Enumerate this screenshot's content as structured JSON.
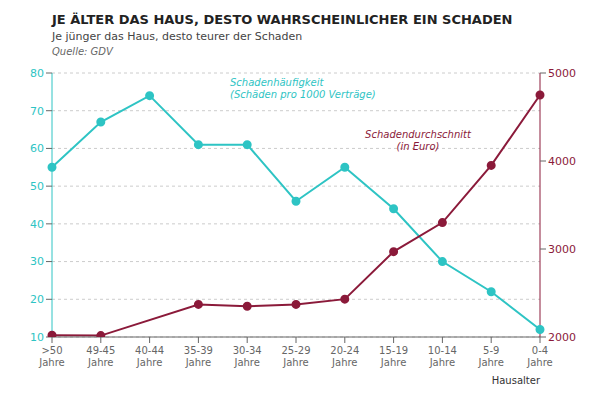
{
  "chart_data": {
    "type": "line",
    "title": "JE ÄLTER DAS HAUS, DESTO WAHRSCHEINLICHER EIN SCHADEN",
    "subtitle": "Je jünger das Haus, desto teurer der Schaden",
    "source": "Quelle: GDV",
    "xlabel": "Hausalter",
    "categories": [
      ">50\nJahre",
      "49-45\nJahre",
      "40-44\nJahre",
      "35-39\nJahre",
      "30-34\nJahre",
      "25-29\nJahre",
      "20-24\nJahre",
      "15-19\nJahre",
      "10-14\nJahre",
      "5-9\nJahre",
      "0-4\nJahre"
    ],
    "series": [
      {
        "name": "Schadenhäufigkeit\n(Schäden pro 1000 Verträge)",
        "color": "#2ec4c4",
        "marker": "circle",
        "values": [
          55,
          67,
          74,
          61,
          61,
          46,
          55,
          44,
          30,
          22,
          12
        ]
      },
      {
        "name": "Schadendurchschnitt\n(in Euro)",
        "color": "#8b1a3a",
        "marker": "circle",
        "axis": "y2",
        "values": [
          2020,
          2016,
          null,
          2370,
          2350,
          2370,
          2430,
          2970,
          3300,
          3950,
          4750
        ]
      }
    ],
    "ylim": [
      10,
      80
    ],
    "yticks": [
      10,
      20,
      30,
      40,
      50,
      60,
      70,
      80
    ],
    "y2lim": [
      2000,
      5000
    ],
    "y2ticks": [
      2000,
      3000,
      4000,
      5000
    ]
  }
}
